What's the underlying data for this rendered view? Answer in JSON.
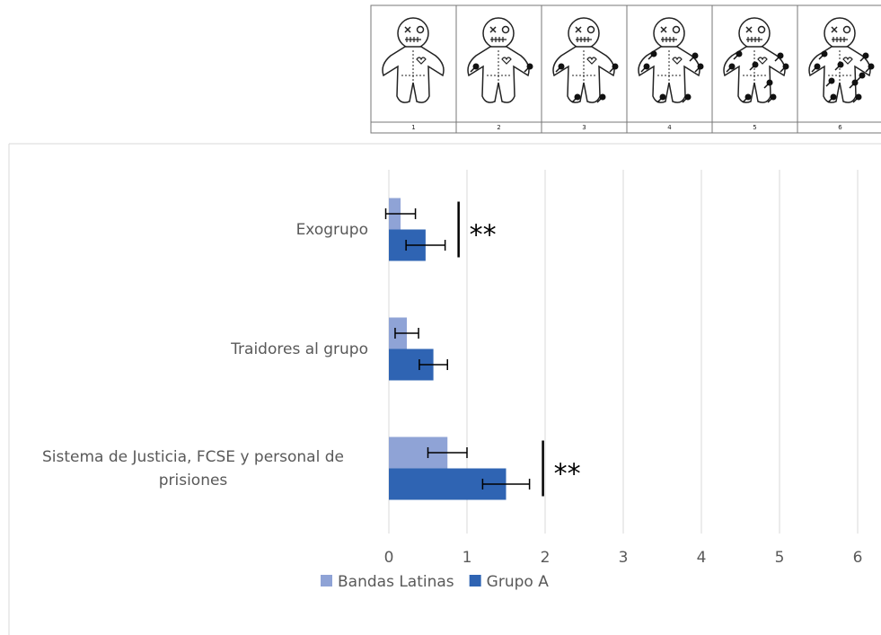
{
  "panel_labels": [
    "1",
    "2",
    "3",
    "4",
    "5",
    "6"
  ],
  "chart_data": {
    "type": "bar",
    "orientation": "horizontal",
    "categories": [
      "Exogrupo",
      "Traidores al grupo",
      "Sistema de Justicia, FCSE y personal de prisiones"
    ],
    "series": [
      {
        "name": "Bandas Latinas",
        "color": "#8fa3d6",
        "values": [
          0.15,
          0.23,
          0.75
        ],
        "errors": [
          0.19,
          0.15,
          0.25
        ]
      },
      {
        "name": "Grupo A",
        "color": "#2f64b3",
        "values": [
          0.47,
          0.57,
          1.5
        ],
        "errors": [
          0.25,
          0.18,
          0.3
        ]
      }
    ],
    "xlim": [
      0,
      6
    ],
    "xticks": [
      0,
      1,
      2,
      3,
      4,
      5,
      6
    ],
    "grid": true,
    "legend": "bottom",
    "annotations": [
      {
        "text": "**",
        "category": "Exogrupo"
      },
      {
        "text": "**",
        "category": "Sistema de Justicia, FCSE y personal de prisiones"
      }
    ]
  }
}
